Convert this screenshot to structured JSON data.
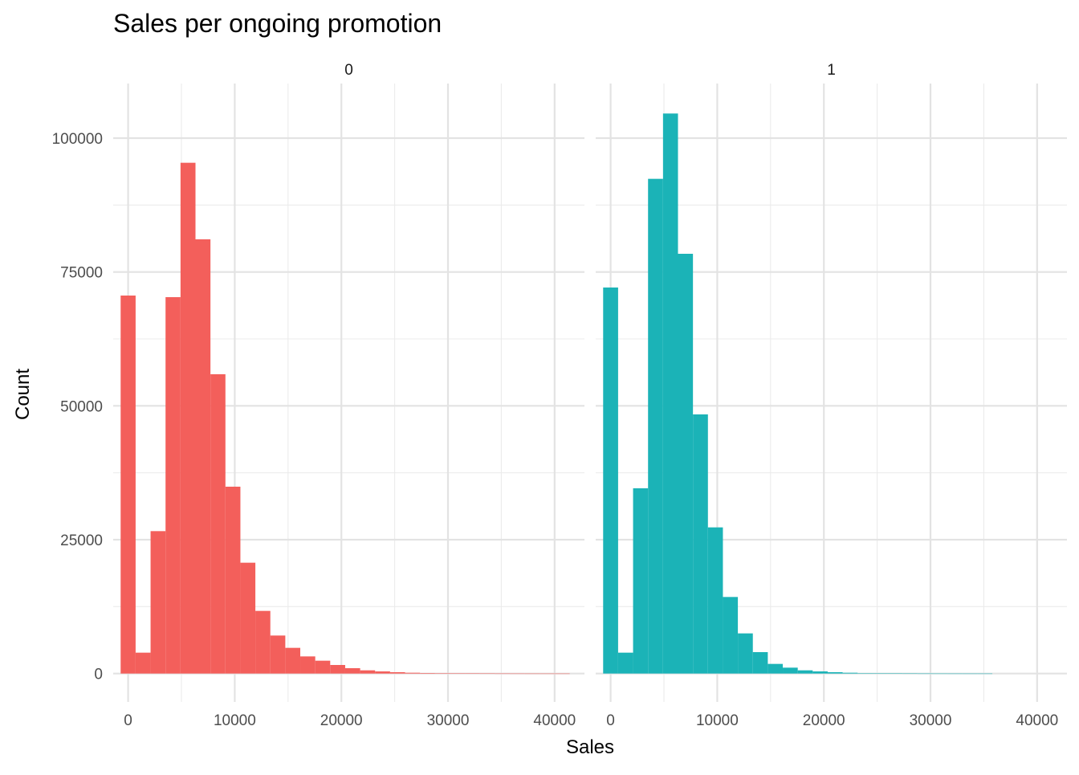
{
  "chart_data": {
    "type": "bar",
    "title": "Sales per ongoing promotion",
    "xlabel": "Sales",
    "ylabel": "Count",
    "xlim": [
      -1400,
      42800
    ],
    "ylim": [
      -5300,
      110200
    ],
    "x_ticks": [
      0,
      10000,
      20000,
      30000,
      40000
    ],
    "x_tick_labels": [
      "0",
      "10000",
      "20000",
      "30000",
      "40000"
    ],
    "y_ticks": [
      0,
      25000,
      50000,
      75000,
      100000
    ],
    "y_tick_labels": [
      "0",
      "25000",
      "50000",
      "75000",
      "100000"
    ],
    "grid": true,
    "bin_start": -702,
    "bin_width": 1404,
    "panels": [
      {
        "label": "0",
        "color": "#F35F5B",
        "values": [
          70600,
          3900,
          26600,
          70300,
          95400,
          81100,
          55900,
          34900,
          20700,
          11700,
          7100,
          4800,
          3200,
          2400,
          1600,
          1000,
          600,
          400,
          250,
          150,
          100,
          80,
          50,
          30,
          20,
          10,
          5,
          3,
          2,
          1
        ]
      },
      {
        "label": "1",
        "color": "#1BB3B7",
        "values": [
          72100,
          3900,
          34600,
          92400,
          104600,
          78400,
          48400,
          27300,
          14300,
          7500,
          4000,
          1800,
          1100,
          600,
          400,
          250,
          150,
          80,
          50,
          30,
          20,
          10,
          5,
          3,
          2,
          1,
          0,
          0,
          0,
          0
        ]
      }
    ]
  }
}
